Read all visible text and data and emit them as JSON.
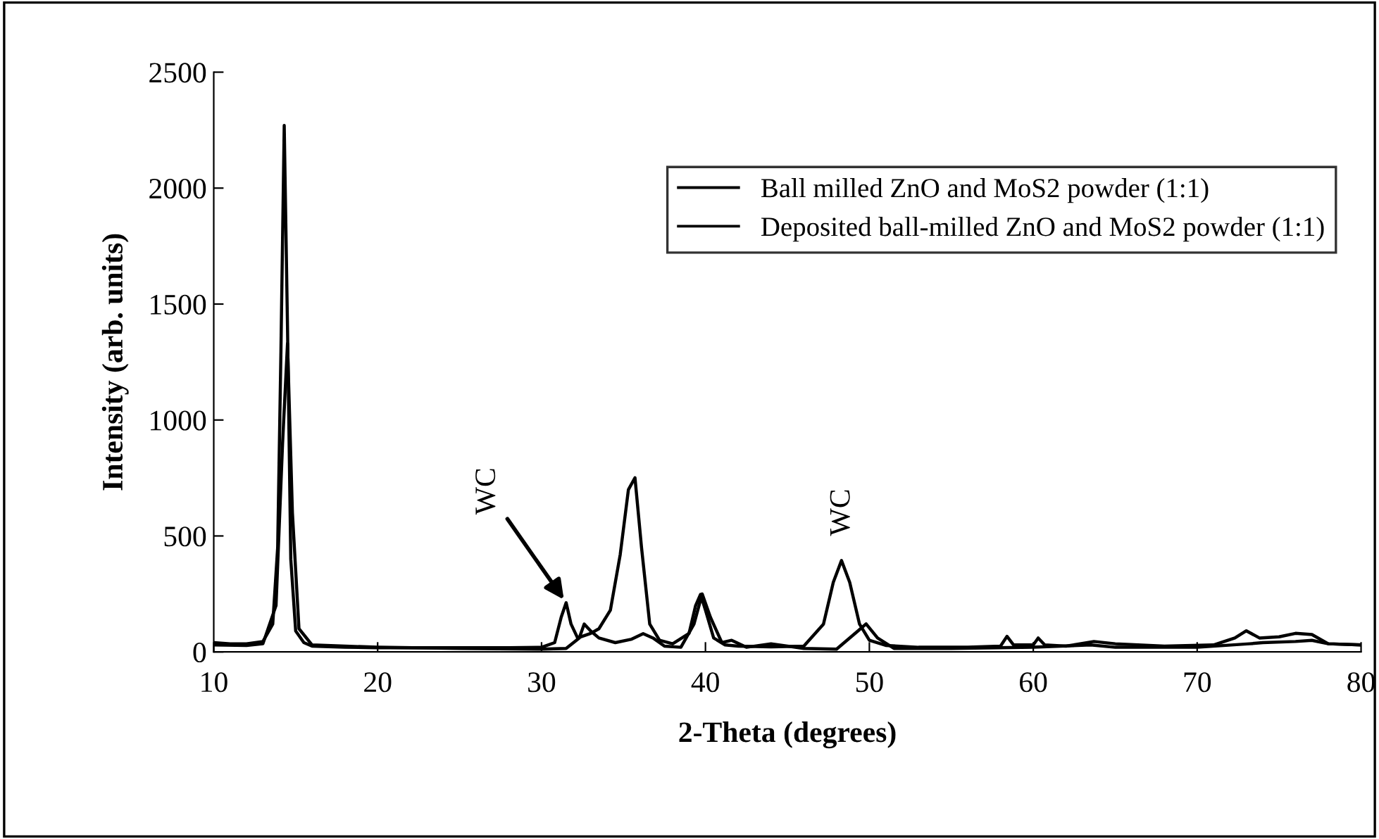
{
  "chart_data": {
    "type": "line",
    "xlabel": "2-Theta (degrees)",
    "ylabel": "Intensity (arb. units)",
    "xlim": [
      10,
      80
    ],
    "ylim": [
      0,
      2500
    ],
    "xticks": [
      10,
      20,
      30,
      40,
      50,
      60,
      70,
      80
    ],
    "yticks": [
      0,
      500,
      1000,
      1500,
      2000,
      2500
    ],
    "legend": "top right",
    "grid": false,
    "marker": "none",
    "line_style": "solid",
    "annotations": [
      {
        "text": "WC",
        "x": 31.5,
        "y": 212
      },
      "WC"
    ],
    "series": [
      {
        "name": "Ball milled ZnO and MoS2 powder (1:1)",
        "color": "#000000",
        "x": [
          10,
          11,
          12,
          13,
          13.6,
          13.9,
          14.1,
          14.3,
          14.5,
          14.7,
          15.0,
          15.5,
          16,
          18,
          20,
          22,
          25,
          28,
          30,
          30.8,
          31.2,
          31.5,
          31.8,
          32.2,
          32.6,
          33.0,
          33.5,
          34.2,
          34.8,
          35.3,
          35.7,
          36.1,
          36.6,
          37.2,
          38,
          39.0,
          39.4,
          39.7,
          40.0,
          40.5,
          41.2,
          42,
          44,
          46,
          47.2,
          47.8,
          48.3,
          48.8,
          49.4,
          50,
          51,
          53,
          56,
          58,
          58.4,
          58.8,
          60,
          60.3,
          60.7,
          62,
          63.7,
          65,
          68,
          71,
          72.3,
          73.0,
          73.8,
          75,
          76,
          77,
          78,
          80
        ],
        "values": [
          40,
          35,
          35,
          45,
          120,
          450,
          1300,
          2270,
          1400,
          400,
          90,
          40,
          25,
          20,
          18,
          18,
          18,
          18,
          20,
          40,
          150,
          212,
          120,
          60,
          70,
          80,
          100,
          180,
          420,
          700,
          751,
          450,
          120,
          50,
          35,
          80,
          200,
          248,
          180,
          60,
          30,
          25,
          22,
          25,
          120,
          300,
          394,
          300,
          120,
          50,
          28,
          20,
          20,
          25,
          67,
          30,
          30,
          60,
          30,
          25,
          45,
          35,
          25,
          30,
          60,
          91,
          60,
          65,
          80,
          75,
          35,
          30
        ]
      },
      {
        "name": "Deposited ball-milled ZnO and MoS2 powder (1:1)",
        "color": "#000000",
        "x": [
          10,
          12,
          13,
          13.8,
          14.2,
          14.5,
          14.8,
          15.2,
          16,
          20,
          25,
          30,
          31.5,
          32.3,
          32.6,
          33.0,
          33.5,
          34.5,
          35.5,
          36.2,
          36.8,
          37.5,
          38.5,
          39.3,
          39.8,
          40.3,
          41,
          41.6,
          42.5,
          44,
          46,
          48,
          49.3,
          49.8,
          50.5,
          51.5,
          55,
          60,
          63.5,
          65,
          70,
          73.2,
          74,
          76,
          77,
          78,
          80
        ],
        "values": [
          30,
          28,
          35,
          200,
          900,
          1330,
          600,
          100,
          30,
          20,
          15,
          12,
          15,
          60,
          120,
          90,
          60,
          40,
          55,
          79,
          60,
          25,
          20,
          120,
          250,
          150,
          40,
          50,
          20,
          35,
          15,
          12,
          90,
          121,
          60,
          15,
          15,
          20,
          30,
          20,
          20,
          35,
          40,
          45,
          50,
          35,
          30
        ]
      }
    ]
  }
}
